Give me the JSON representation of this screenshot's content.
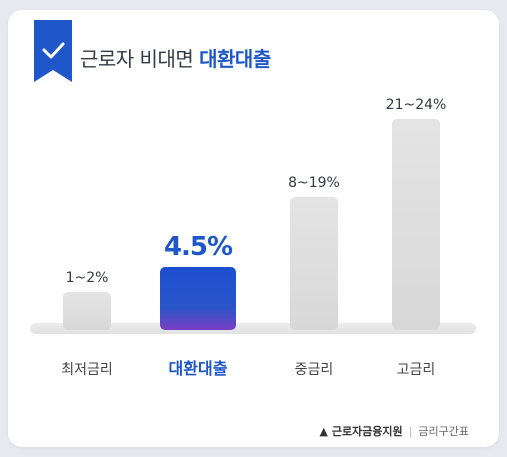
{
  "header": {
    "title_prefix": "근로자 비대면",
    "title_highlight": "대환대출",
    "icon": "check-ribbon-icon"
  },
  "colors": {
    "accent": "#1f57c8",
    "bar_gray": "#dedede",
    "text": "#333a44"
  },
  "chart_data": {
    "type": "bar",
    "categories": [
      "최저금리",
      "대환대출",
      "중금리",
      "고금리"
    ],
    "value_labels": [
      "1~2%",
      "4.5%",
      "8~19%",
      "21~24%"
    ],
    "ranges": [
      [
        1,
        2
      ],
      [
        4.5,
        4.5
      ],
      [
        8,
        19
      ],
      [
        21,
        24
      ]
    ],
    "bar_heights_relative": [
      0.18,
      0.3,
      0.63,
      1.0
    ],
    "highlight_index": 1,
    "grid": false,
    "legend": "none"
  },
  "footer": {
    "source": "▲ 근로자금융지원",
    "separator": "|",
    "note": "금리구간표"
  }
}
